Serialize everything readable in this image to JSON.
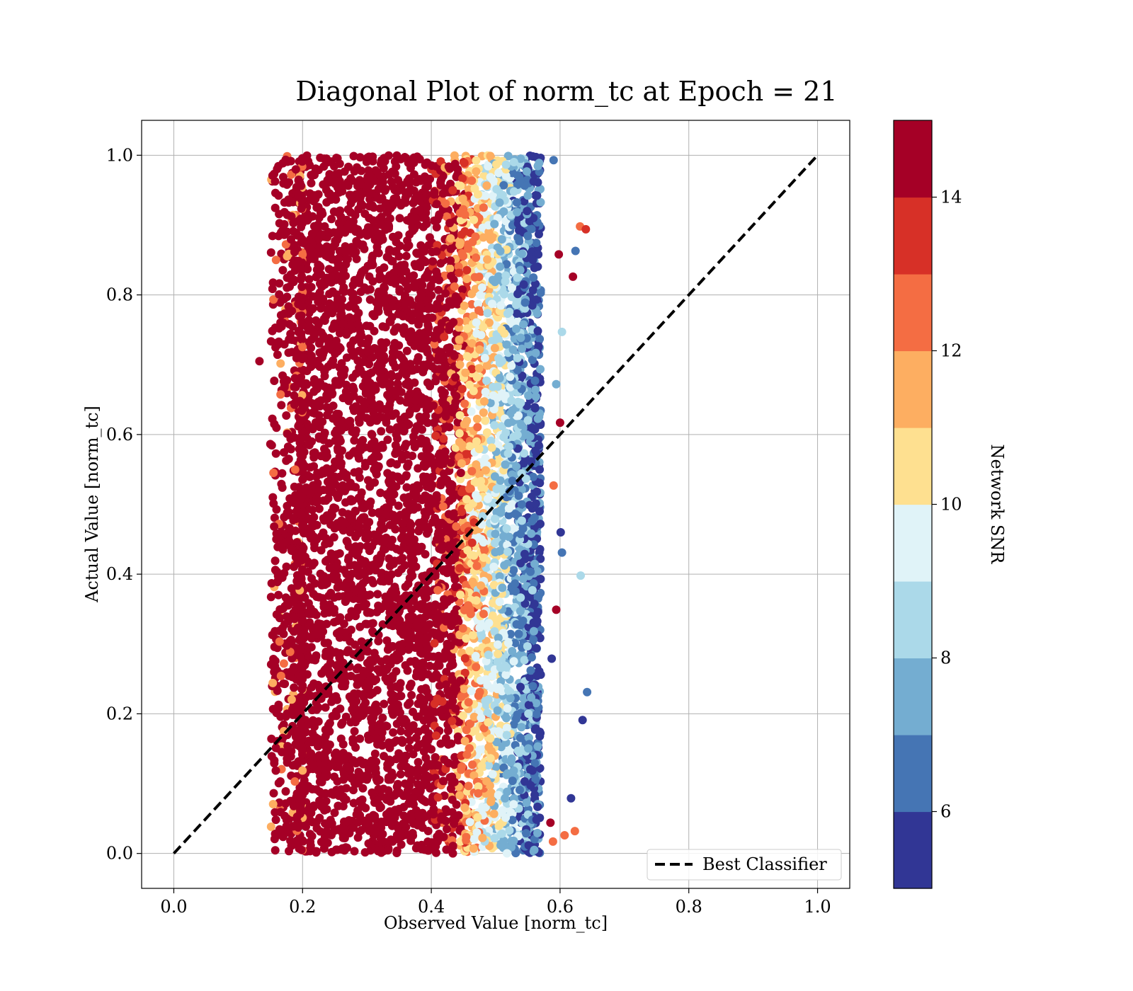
{
  "chart_data": {
    "type": "scatter",
    "title": "Diagonal Plot of norm_tc at Epoch = 21",
    "xlabel": "Observed Value [norm_tc]",
    "ylabel": "Actual Value [norm_tc]",
    "xlim": [
      -0.05,
      1.05
    ],
    "ylim": [
      -0.05,
      1.05
    ],
    "xticks": [
      "0.0",
      "0.2",
      "0.4",
      "0.6",
      "0.8",
      "1.0"
    ],
    "yticks": [
      "0.0",
      "0.2",
      "0.4",
      "0.6",
      "0.8",
      "1.0"
    ],
    "grid": true,
    "legend": {
      "placement": "lower right",
      "entries": [
        "Best Classifier"
      ]
    },
    "reference_line": {
      "name": "Best Classifier",
      "x": [
        0,
        1
      ],
      "y": [
        0,
        1
      ],
      "style": "dashed",
      "color": "#000000"
    },
    "colorbar": {
      "label": "Network SNR",
      "range": [
        5,
        15
      ],
      "ticks": [
        "6",
        "8",
        "10",
        "12",
        "14"
      ],
      "colormap": "RdYlBu_r",
      "bands": [
        "#313695",
        "#4575b4",
        "#74add1",
        "#abd9e9",
        "#e0f3f8",
        "#fee090",
        "#fdae61",
        "#f46d43",
        "#d73027",
        "#a50026"
      ]
    },
    "series": [
      {
        "marker": "circle",
        "dense_region": {
          "x": [
            0.2,
            0.4
          ],
          "y": [
            0.0,
            1.0
          ],
          "snr": 15
        },
        "x_extent": [
          0.13,
          0.64
        ],
        "y_extent": [
          0.0,
          1.0
        ],
        "sample_points": [
          {
            "x": 0.133,
            "y": 0.705,
            "snr": 15
          },
          {
            "x": 0.152,
            "y": 0.387,
            "snr": 15
          },
          {
            "x": 0.155,
            "y": 0.268,
            "snr": 15
          },
          {
            "x": 0.161,
            "y": 0.233,
            "snr": 15
          },
          {
            "x": 0.175,
            "y": 0.039,
            "snr": 15
          },
          {
            "x": 0.171,
            "y": 0.272,
            "snr": 12
          },
          {
            "x": 0.56,
            "y": 0.005,
            "snr": 7
          },
          {
            "x": 0.589,
            "y": 0.017,
            "snr": 12
          },
          {
            "x": 0.607,
            "y": 0.026,
            "snr": 12
          },
          {
            "x": 0.623,
            "y": 0.032,
            "snr": 12
          },
          {
            "x": 0.585,
            "y": 0.044,
            "snr": 15
          },
          {
            "x": 0.617,
            "y": 0.079,
            "snr": 5
          },
          {
            "x": 0.635,
            "y": 0.191,
            "snr": 5
          },
          {
            "x": 0.642,
            "y": 0.231,
            "snr": 6
          },
          {
            "x": 0.632,
            "y": 0.398,
            "snr": 8
          },
          {
            "x": 0.603,
            "y": 0.431,
            "snr": 6
          },
          {
            "x": 0.601,
            "y": 0.46,
            "snr": 5
          },
          {
            "x": 0.6,
            "y": 0.617,
            "snr": 15
          },
          {
            "x": 0.594,
            "y": 0.672,
            "snr": 7
          },
          {
            "x": 0.603,
            "y": 0.747,
            "snr": 8
          },
          {
            "x": 0.62,
            "y": 0.826,
            "snr": 15
          },
          {
            "x": 0.624,
            "y": 0.863,
            "snr": 6
          },
          {
            "x": 0.631,
            "y": 0.898,
            "snr": 12
          },
          {
            "x": 0.64,
            "y": 0.894,
            "snr": 13
          },
          {
            "x": 0.598,
            "y": 0.858,
            "snr": 15
          },
          {
            "x": 0.59,
            "y": 0.993,
            "snr": 6
          },
          {
            "x": 0.587,
            "y": 0.279,
            "snr": 5
          },
          {
            "x": 0.594,
            "y": 0.349,
            "snr": 15
          },
          {
            "x": 0.59,
            "y": 0.527,
            "snr": 12
          }
        ]
      }
    ]
  }
}
